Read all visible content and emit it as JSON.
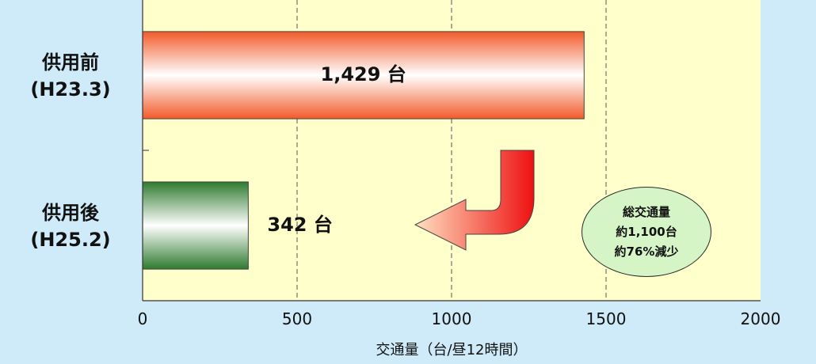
{
  "chart_data": {
    "type": "bar",
    "orientation": "horizontal",
    "categories": [
      "供用前\n(H23.3)",
      "供用後\n(H25.2)"
    ],
    "category_lines": [
      [
        "供用前",
        "(H23.3)"
      ],
      [
        "供用後",
        "(H25.2)"
      ]
    ],
    "values": [
      1429,
      342
    ],
    "value_labels": [
      "1,429 台",
      "342 台"
    ],
    "xlabel": "交通量（台/昼12時間）",
    "ylabel": "",
    "xlim": [
      0,
      2000
    ],
    "xticks": [
      0,
      500,
      1000,
      1500,
      2000
    ],
    "tick_labels": [
      "0",
      "500",
      "1000",
      "1500",
      "2000"
    ],
    "grid": "vertical dashed",
    "callout": {
      "lines": [
        "総交通量",
        "約1,100台",
        "約76%減少"
      ]
    }
  },
  "colors": {
    "background": "#cfeaf8",
    "plot_area": "#ffffcc",
    "before_bar": "#f25a2a",
    "after_bar": "#2f7a2f",
    "callout_fill": "#d6f5c6",
    "arrow": "#ee3322"
  }
}
